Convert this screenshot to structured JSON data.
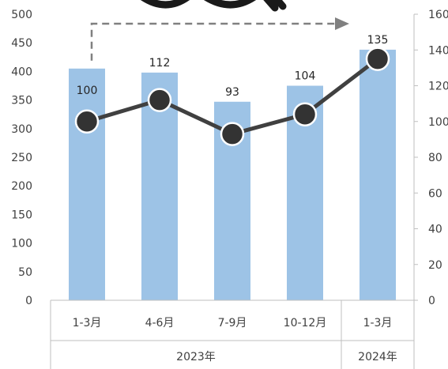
{
  "chart_data": {
    "type": "bar+line",
    "categories": [
      "1-3月",
      "4-6月",
      "7-9月",
      "10-12月",
      "1-3月"
    ],
    "groups": [
      {
        "label": "2023年",
        "count": 4
      },
      {
        "label": "2024年",
        "count": 1
      }
    ],
    "bars": {
      "values": [
        405,
        398,
        347,
        375,
        438
      ],
      "color": "#9dc3e6"
    },
    "line": {
      "values": [
        100,
        112,
        93,
        104,
        135
      ],
      "labels": [
        "100",
        "112",
        "93",
        "104",
        "135"
      ],
      "color": "#404040",
      "marker_color": "#333333"
    },
    "y_left": {
      "min": 0,
      "max": 500,
      "step": 50,
      "ticks": [
        "0",
        "50",
        "100",
        "150",
        "200",
        "250",
        "300",
        "350",
        "400",
        "450",
        "500"
      ]
    },
    "y_right": {
      "min": 0,
      "max": 160,
      "step": 20,
      "ticks": [
        "0",
        "20",
        "40",
        "60",
        "80",
        "100",
        "120",
        "140",
        "160"
      ]
    },
    "annotation": {
      "type": "dashed-arrow",
      "from_category": 0,
      "to_category": 4,
      "color": "#808080"
    },
    "grid": false,
    "legend": "none"
  }
}
